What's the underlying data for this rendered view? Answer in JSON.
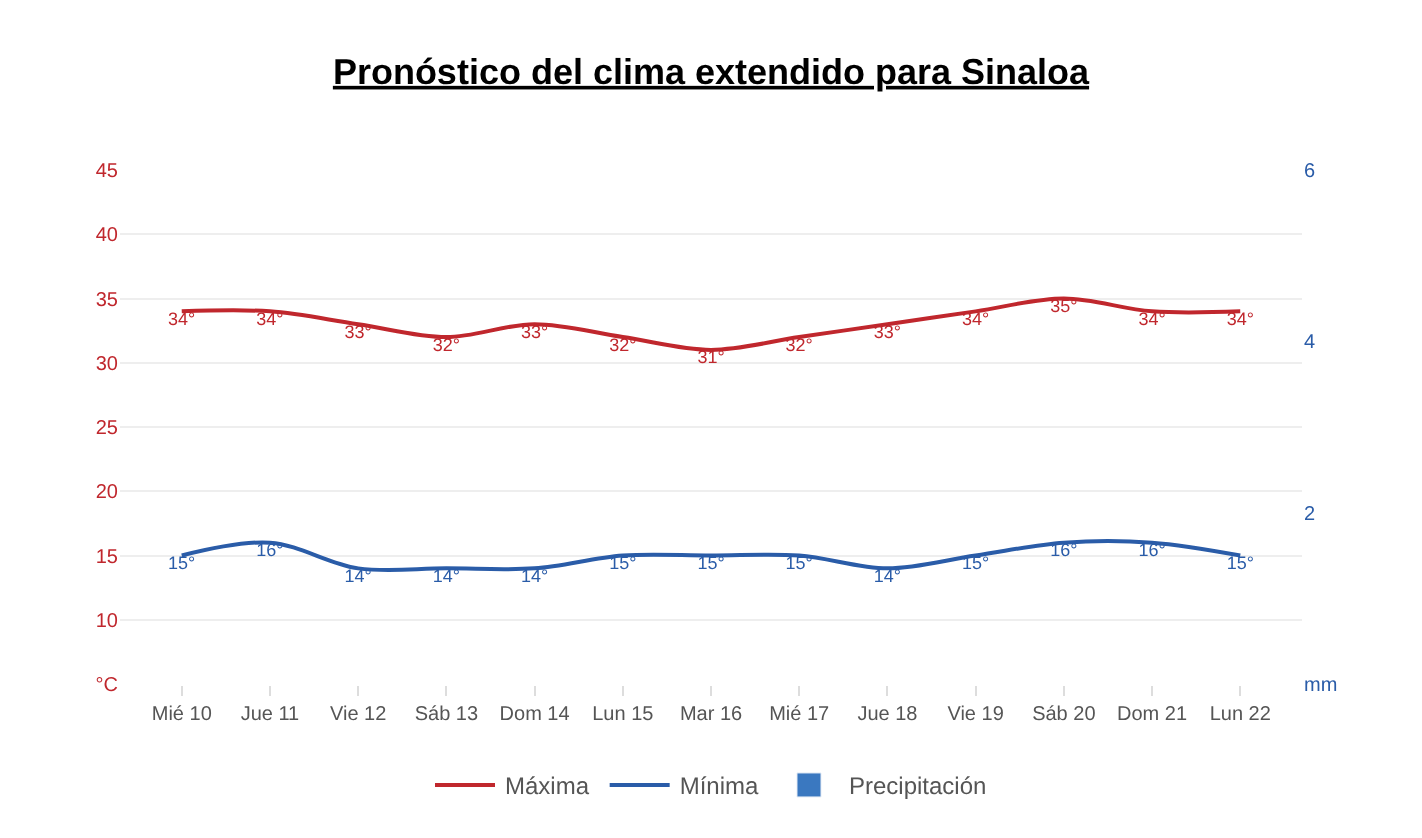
{
  "chart_data": {
    "type": "line",
    "title": "Pronóstico del clima extendido para Sinaloa",
    "categories": [
      "Mié 10",
      "Jue 11",
      "Vie 12",
      "Sáb 13",
      "Dom 14",
      "Lun 15",
      "Mar 16",
      "Mié 17",
      "Jue 18",
      "Vie 19",
      "Sáb 20",
      "Dom 21",
      "Lun 22"
    ],
    "series": [
      {
        "name": "Máxima",
        "color": "#c0272d",
        "values": [
          34,
          34,
          33,
          32,
          33,
          32,
          31,
          32,
          33,
          34,
          35,
          34,
          34
        ],
        "value_labels": [
          "34°",
          "34°",
          "33°",
          "32°",
          "33°",
          "32°",
          "31°",
          "32°",
          "33°",
          "34°",
          "35°",
          "34°",
          "34°"
        ]
      },
      {
        "name": "Mínima",
        "color": "#2a5ca8",
        "values": [
          15,
          16,
          14,
          14,
          14,
          15,
          15,
          15,
          14,
          15,
          16,
          16,
          15
        ],
        "value_labels": [
          "15°",
          "16°",
          "14°",
          "14°",
          "14°",
          "15°",
          "15°",
          "15°",
          "14°",
          "15°",
          "16°",
          "16°",
          "15°"
        ]
      },
      {
        "name": "Precipitación",
        "type": "bar",
        "axis": "y2",
        "color": "#3a78c0",
        "values": [
          null,
          null,
          null,
          null,
          null,
          null,
          null,
          null,
          null,
          null,
          null,
          null,
          null
        ]
      }
    ],
    "ylim": [
      5,
      45
    ],
    "yticks": [
      {
        "value": 5,
        "label": "°C"
      },
      10,
      15,
      20,
      25,
      30,
      35,
      40,
      45
    ],
    "y2lim": [
      0,
      6
    ],
    "y2ticks": [
      {
        "value": 0,
        "label": "mm"
      },
      2,
      4,
      6
    ],
    "grid": "y",
    "legend": "bottom",
    "marker": "none",
    "line_style": "solid"
  }
}
